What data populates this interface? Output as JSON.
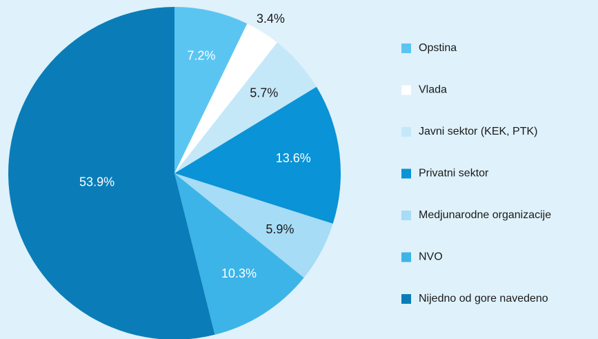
{
  "chart_data": {
    "type": "pie",
    "categories": [
      "Opstina",
      "Vlada",
      "Javni sektor (KEK, PTK)",
      "Privatni sektor",
      "Medjunarodne organizacije",
      "NVO",
      "Nijedno od gore navedeno"
    ],
    "values": [
      7.2,
      3.4,
      5.7,
      13.6,
      5.9,
      10.3,
      53.9
    ],
    "value_labels": [
      "7.2%",
      "3.4%",
      "5.7%",
      "13.6%",
      "5.9%",
      "10.3%",
      "53.9%"
    ],
    "colors": [
      "#5bc5f2",
      "#ffffff",
      "#c5e8f9",
      "#0a93d6",
      "#a6dcf5",
      "#3db4e8",
      "#0a7db8"
    ],
    "legend": "right"
  }
}
